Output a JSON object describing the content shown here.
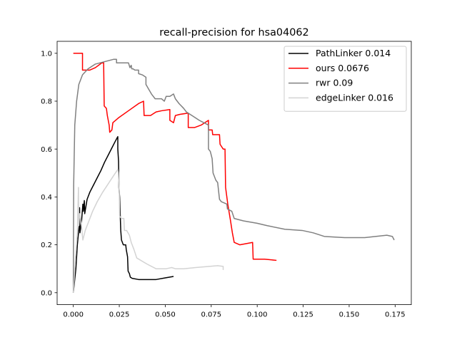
{
  "chart_data": {
    "type": "line",
    "title": "recall-precision for hsa04062",
    "xlabel": "",
    "ylabel": "",
    "xlim": [
      -0.0088,
      0.1838
    ],
    "ylim": [
      -0.05,
      1.05
    ],
    "xticks": [
      0.0,
      0.025,
      0.05,
      0.075,
      0.1,
      0.125,
      0.15,
      0.175
    ],
    "xtick_labels": [
      "0.000",
      "0.025",
      "0.050",
      "0.075",
      "0.100",
      "0.125",
      "0.150",
      "0.175"
    ],
    "yticks": [
      0.0,
      0.2,
      0.4,
      0.6,
      0.8,
      1.0
    ],
    "ytick_labels": [
      "0.0",
      "0.2",
      "0.4",
      "0.6",
      "0.8",
      "1.0"
    ],
    "grid": false,
    "legend_position": "top-right",
    "series": [
      {
        "name": "PathLinker 0.014",
        "color": "#000000",
        "points": [
          [
            0.0,
            0.0
          ],
          [
            0.0014,
            0.1
          ],
          [
            0.0022,
            0.2
          ],
          [
            0.0032,
            0.28
          ],
          [
            0.0034,
            0.355
          ],
          [
            0.0036,
            0.25
          ],
          [
            0.0045,
            0.3
          ],
          [
            0.0052,
            0.37
          ],
          [
            0.0054,
            0.34
          ],
          [
            0.006,
            0.385
          ],
          [
            0.0062,
            0.33
          ],
          [
            0.0075,
            0.39
          ],
          [
            0.009,
            0.42
          ],
          [
            0.011,
            0.45
          ],
          [
            0.013,
            0.48
          ],
          [
            0.015,
            0.51
          ],
          [
            0.017,
            0.545
          ],
          [
            0.019,
            0.575
          ],
          [
            0.021,
            0.605
          ],
          [
            0.023,
            0.635
          ],
          [
            0.0242,
            0.652
          ],
          [
            0.0242,
            0.6
          ],
          [
            0.0246,
            0.55
          ],
          [
            0.0248,
            0.44
          ],
          [
            0.0252,
            0.4
          ],
          [
            0.0255,
            0.33
          ],
          [
            0.0258,
            0.26
          ],
          [
            0.0262,
            0.22
          ],
          [
            0.0272,
            0.2
          ],
          [
            0.0285,
            0.2
          ],
          [
            0.0288,
            0.18
          ],
          [
            0.0295,
            0.15
          ],
          [
            0.0298,
            0.09
          ],
          [
            0.0305,
            0.08
          ],
          [
            0.031,
            0.065
          ],
          [
            0.032,
            0.06
          ],
          [
            0.0355,
            0.055
          ],
          [
            0.04,
            0.055
          ],
          [
            0.045,
            0.055
          ],
          [
            0.05,
            0.062
          ],
          [
            0.0545,
            0.068
          ]
        ]
      },
      {
        "name": "ours 0.0676",
        "color": "#ff0000",
        "points": [
          [
            0.0,
            1.0
          ],
          [
            0.005,
            1.0
          ],
          [
            0.005,
            0.93
          ],
          [
            0.009,
            0.93
          ],
          [
            0.012,
            0.94
          ],
          [
            0.0155,
            0.96
          ],
          [
            0.0165,
            0.96
          ],
          [
            0.0168,
            0.78
          ],
          [
            0.018,
            0.77
          ],
          [
            0.0185,
            0.74
          ],
          [
            0.0195,
            0.7
          ],
          [
            0.0198,
            0.67
          ],
          [
            0.021,
            0.68
          ],
          [
            0.0215,
            0.71
          ],
          [
            0.0245,
            0.73
          ],
          [
            0.03,
            0.76
          ],
          [
            0.0355,
            0.79
          ],
          [
            0.0382,
            0.8
          ],
          [
            0.0385,
            0.74
          ],
          [
            0.042,
            0.74
          ],
          [
            0.045,
            0.755
          ],
          [
            0.048,
            0.76
          ],
          [
            0.0525,
            0.765
          ],
          [
            0.0525,
            0.72
          ],
          [
            0.0545,
            0.71
          ],
          [
            0.0555,
            0.74
          ],
          [
            0.058,
            0.745
          ],
          [
            0.0625,
            0.75
          ],
          [
            0.0625,
            0.69
          ],
          [
            0.066,
            0.69
          ],
          [
            0.0695,
            0.7
          ],
          [
            0.0735,
            0.72
          ],
          [
            0.0735,
            0.68
          ],
          [
            0.0755,
            0.68
          ],
          [
            0.0758,
            0.66
          ],
          [
            0.0795,
            0.66
          ],
          [
            0.0798,
            0.62
          ],
          [
            0.0815,
            0.6
          ],
          [
            0.0825,
            0.6
          ],
          [
            0.0828,
            0.44
          ],
          [
            0.084,
            0.37
          ],
          [
            0.0855,
            0.3
          ],
          [
            0.0865,
            0.25
          ],
          [
            0.0875,
            0.21
          ],
          [
            0.0905,
            0.2
          ],
          [
            0.0975,
            0.21
          ],
          [
            0.0978,
            0.14
          ],
          [
            0.104,
            0.14
          ],
          [
            0.1105,
            0.135
          ]
        ]
      },
      {
        "name": "rwr 0.09",
        "color": "#808080",
        "points": [
          [
            0.0,
            0.0
          ],
          [
            0.0002,
            0.45
          ],
          [
            0.0008,
            0.7
          ],
          [
            0.0018,
            0.8
          ],
          [
            0.003,
            0.87
          ],
          [
            0.005,
            0.91
          ],
          [
            0.008,
            0.935
          ],
          [
            0.012,
            0.955
          ],
          [
            0.017,
            0.965
          ],
          [
            0.022,
            0.975
          ],
          [
            0.0235,
            0.975
          ],
          [
            0.0235,
            0.96
          ],
          [
            0.03,
            0.96
          ],
          [
            0.0308,
            0.94
          ],
          [
            0.0315,
            0.95
          ],
          [
            0.0318,
            0.935
          ],
          [
            0.0325,
            0.935
          ],
          [
            0.0335,
            0.93
          ],
          [
            0.0355,
            0.93
          ],
          [
            0.0355,
            0.915
          ],
          [
            0.0375,
            0.91
          ],
          [
            0.0395,
            0.9
          ],
          [
            0.0395,
            0.87
          ],
          [
            0.041,
            0.85
          ],
          [
            0.0425,
            0.83
          ],
          [
            0.0435,
            0.82
          ],
          [
            0.0445,
            0.81
          ],
          [
            0.048,
            0.81
          ],
          [
            0.0495,
            0.8
          ],
          [
            0.0505,
            0.82
          ],
          [
            0.0525,
            0.82
          ],
          [
            0.0545,
            0.83
          ],
          [
            0.0555,
            0.81
          ],
          [
            0.0575,
            0.79
          ],
          [
            0.06,
            0.77
          ],
          [
            0.0615,
            0.755
          ],
          [
            0.0645,
            0.74
          ],
          [
            0.0685,
            0.72
          ],
          [
            0.0735,
            0.7
          ],
          [
            0.0735,
            0.6
          ],
          [
            0.0745,
            0.59
          ],
          [
            0.0755,
            0.56
          ],
          [
            0.076,
            0.5
          ],
          [
            0.0765,
            0.49
          ],
          [
            0.0775,
            0.47
          ],
          [
            0.0785,
            0.46
          ],
          [
            0.0795,
            0.39
          ],
          [
            0.0805,
            0.38
          ],
          [
            0.0835,
            0.37
          ],
          [
            0.0838,
            0.35
          ],
          [
            0.0862,
            0.34
          ],
          [
            0.0875,
            0.31
          ],
          [
            0.0925,
            0.3
          ],
          [
            0.1,
            0.29
          ],
          [
            0.1055,
            0.28
          ],
          [
            0.115,
            0.265
          ],
          [
            0.1245,
            0.26
          ],
          [
            0.1305,
            0.25
          ],
          [
            0.1365,
            0.235
          ],
          [
            0.1475,
            0.23
          ],
          [
            0.1585,
            0.23
          ],
          [
            0.1705,
            0.24
          ],
          [
            0.1735,
            0.235
          ],
          [
            0.1745,
            0.22
          ]
        ]
      },
      {
        "name": "edgeLinker 0.016",
        "color": "#d3d3d3",
        "points": [
          [
            0.0,
            0.0
          ],
          [
            0.0012,
            0.15
          ],
          [
            0.0022,
            0.25
          ],
          [
            0.0028,
            0.44
          ],
          [
            0.003,
            0.28
          ],
          [
            0.0035,
            0.33
          ],
          [
            0.0042,
            0.3
          ],
          [
            0.0048,
            0.25
          ],
          [
            0.0052,
            0.22
          ],
          [
            0.0065,
            0.26
          ],
          [
            0.0085,
            0.3
          ],
          [
            0.0105,
            0.34
          ],
          [
            0.013,
            0.38
          ],
          [
            0.016,
            0.42
          ],
          [
            0.019,
            0.455
          ],
          [
            0.022,
            0.49
          ],
          [
            0.0242,
            0.515
          ],
          [
            0.0245,
            0.5
          ],
          [
            0.025,
            0.42
          ],
          [
            0.0252,
            0.32
          ],
          [
            0.0262,
            0.31
          ],
          [
            0.0275,
            0.31
          ],
          [
            0.0278,
            0.26
          ],
          [
            0.029,
            0.26
          ],
          [
            0.0305,
            0.24
          ],
          [
            0.0315,
            0.21
          ],
          [
            0.033,
            0.18
          ],
          [
            0.0345,
            0.145
          ],
          [
            0.04,
            0.12
          ],
          [
            0.045,
            0.1
          ],
          [
            0.0505,
            0.1
          ],
          [
            0.0535,
            0.105
          ],
          [
            0.0555,
            0.1
          ],
          [
            0.06,
            0.1
          ],
          [
            0.0665,
            0.105
          ],
          [
            0.074,
            0.11
          ],
          [
            0.0785,
            0.113
          ],
          [
            0.0815,
            0.11
          ],
          [
            0.0815,
            0.095
          ]
        ]
      }
    ]
  }
}
